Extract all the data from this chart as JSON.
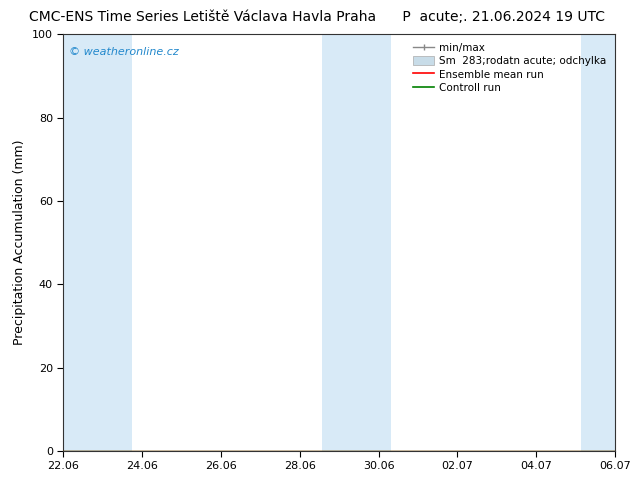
{
  "title": "CMC-ENS Time Series Letiště Václava Havla Praha      P  acute;. 21.06.2024 19 UTC",
  "ylabel": "Precipitation Accumulation (mm)",
  "watermark": "© weatheronline.cz",
  "ylim": [
    0,
    100
  ],
  "yticks": [
    0,
    20,
    40,
    60,
    80,
    100
  ],
  "xtick_labels": [
    "22.06",
    "24.06",
    "26.06",
    "28.06",
    "30.06",
    "02.07",
    "04.07",
    "06.07"
  ],
  "xmin": 0,
  "xmax": 16,
  "blue_bands": [
    [
      0,
      1.0
    ],
    [
      1.0,
      2.0
    ],
    [
      7.5,
      9.5
    ],
    [
      15.0,
      16.0
    ]
  ],
  "legend_labels": [
    "min/max",
    "Sm  283;rodatn acute; odchylka",
    "Ensemble mean run",
    "Controll run"
  ],
  "background_color": "#ffffff",
  "band_color": "#d8eaf7",
  "band_color2": "#c5dcf0",
  "title_fontsize": 10,
  "label_fontsize": 9,
  "tick_fontsize": 8
}
